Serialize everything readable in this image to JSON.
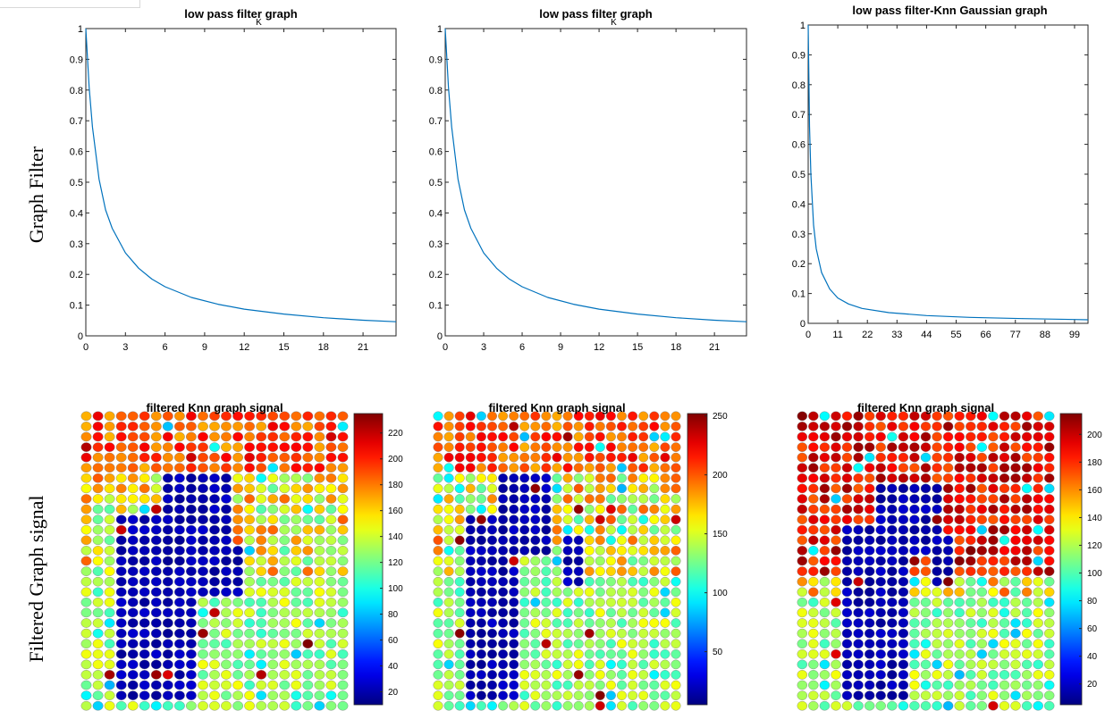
{
  "row_labels": [
    "Graph Filter",
    "Filtered Graph signal"
  ],
  "chart_data": [
    {
      "type": "line",
      "title": "low pass filter graph",
      "title_overlap": "K",
      "xlim": [
        0,
        23.5
      ],
      "ylim": [
        0,
        1
      ],
      "xticks": [
        0,
        3,
        6,
        9,
        12,
        15,
        18,
        21
      ],
      "yticks": [
        0,
        0.1,
        0.2,
        0.3,
        0.4,
        0.5,
        0.6,
        0.7,
        0.8,
        0.9,
        1
      ],
      "series": [
        {
          "x": [
            0,
            0.25,
            0.5,
            1,
            1.5,
            2,
            3,
            4,
            5,
            6,
            8,
            10,
            12,
            15,
            18,
            21,
            23.5
          ],
          "y": [
            1,
            0.81,
            0.68,
            0.51,
            0.41,
            0.35,
            0.27,
            0.22,
            0.185,
            0.16,
            0.125,
            0.103,
            0.087,
            0.071,
            0.059,
            0.051,
            0.046
          ]
        }
      ]
    },
    {
      "type": "line",
      "title": "low pass filter graph",
      "title_overlap": "K",
      "xlim": [
        0,
        23.5
      ],
      "ylim": [
        0,
        1
      ],
      "xticks": [
        0,
        3,
        6,
        9,
        12,
        15,
        18,
        21
      ],
      "yticks": [
        0,
        0.1,
        0.2,
        0.3,
        0.4,
        0.5,
        0.6,
        0.7,
        0.8,
        0.9,
        1
      ],
      "series": [
        {
          "x": [
            0,
            0.25,
            0.5,
            1,
            1.5,
            2,
            3,
            4,
            5,
            6,
            8,
            10,
            12,
            15,
            18,
            21,
            23.5
          ],
          "y": [
            1,
            0.81,
            0.68,
            0.51,
            0.41,
            0.35,
            0.27,
            0.22,
            0.185,
            0.16,
            0.125,
            0.103,
            0.087,
            0.071,
            0.059,
            0.051,
            0.046
          ]
        }
      ]
    },
    {
      "type": "line",
      "title": "low pass filter-Knn Gaussian graph",
      "xlim": [
        0,
        104
      ],
      "ylim": [
        0,
        1
      ],
      "xticks": [
        0,
        11,
        22,
        33,
        44,
        55,
        66,
        77,
        88,
        99
      ],
      "yticks": [
        0,
        0.1,
        0.2,
        0.3,
        0.4,
        0.5,
        0.6,
        0.7,
        0.8,
        0.9,
        1
      ],
      "series": [
        {
          "x": [
            0,
            0.5,
            1,
            2,
            3,
            5,
            8,
            11,
            15,
            20,
            30,
            44,
            60,
            80,
            99,
            104
          ],
          "y": [
            1,
            0.66,
            0.5,
            0.33,
            0.25,
            0.17,
            0.115,
            0.085,
            0.065,
            0.05,
            0.036,
            0.026,
            0.02,
            0.016,
            0.013,
            0.012
          ]
        }
      ]
    },
    {
      "type": "heatmap",
      "title": "filtered Knn graph signal",
      "colorbar_range": [
        10,
        235
      ],
      "colorbar_ticks": [
        20,
        40,
        60,
        80,
        100,
        120,
        140,
        160,
        180,
        200,
        220
      ]
    },
    {
      "type": "heatmap",
      "title": "filtered Knn graph signal",
      "colorbar_range": [
        5,
        252
      ],
      "colorbar_ticks": [
        50,
        100,
        150,
        200,
        250
      ]
    },
    {
      "type": "heatmap",
      "title": "filtered Knn graph signal",
      "colorbar_range": [
        5,
        215
      ],
      "colorbar_ticks": [
        20,
        40,
        60,
        80,
        100,
        120,
        140,
        160,
        180,
        200
      ]
    }
  ]
}
